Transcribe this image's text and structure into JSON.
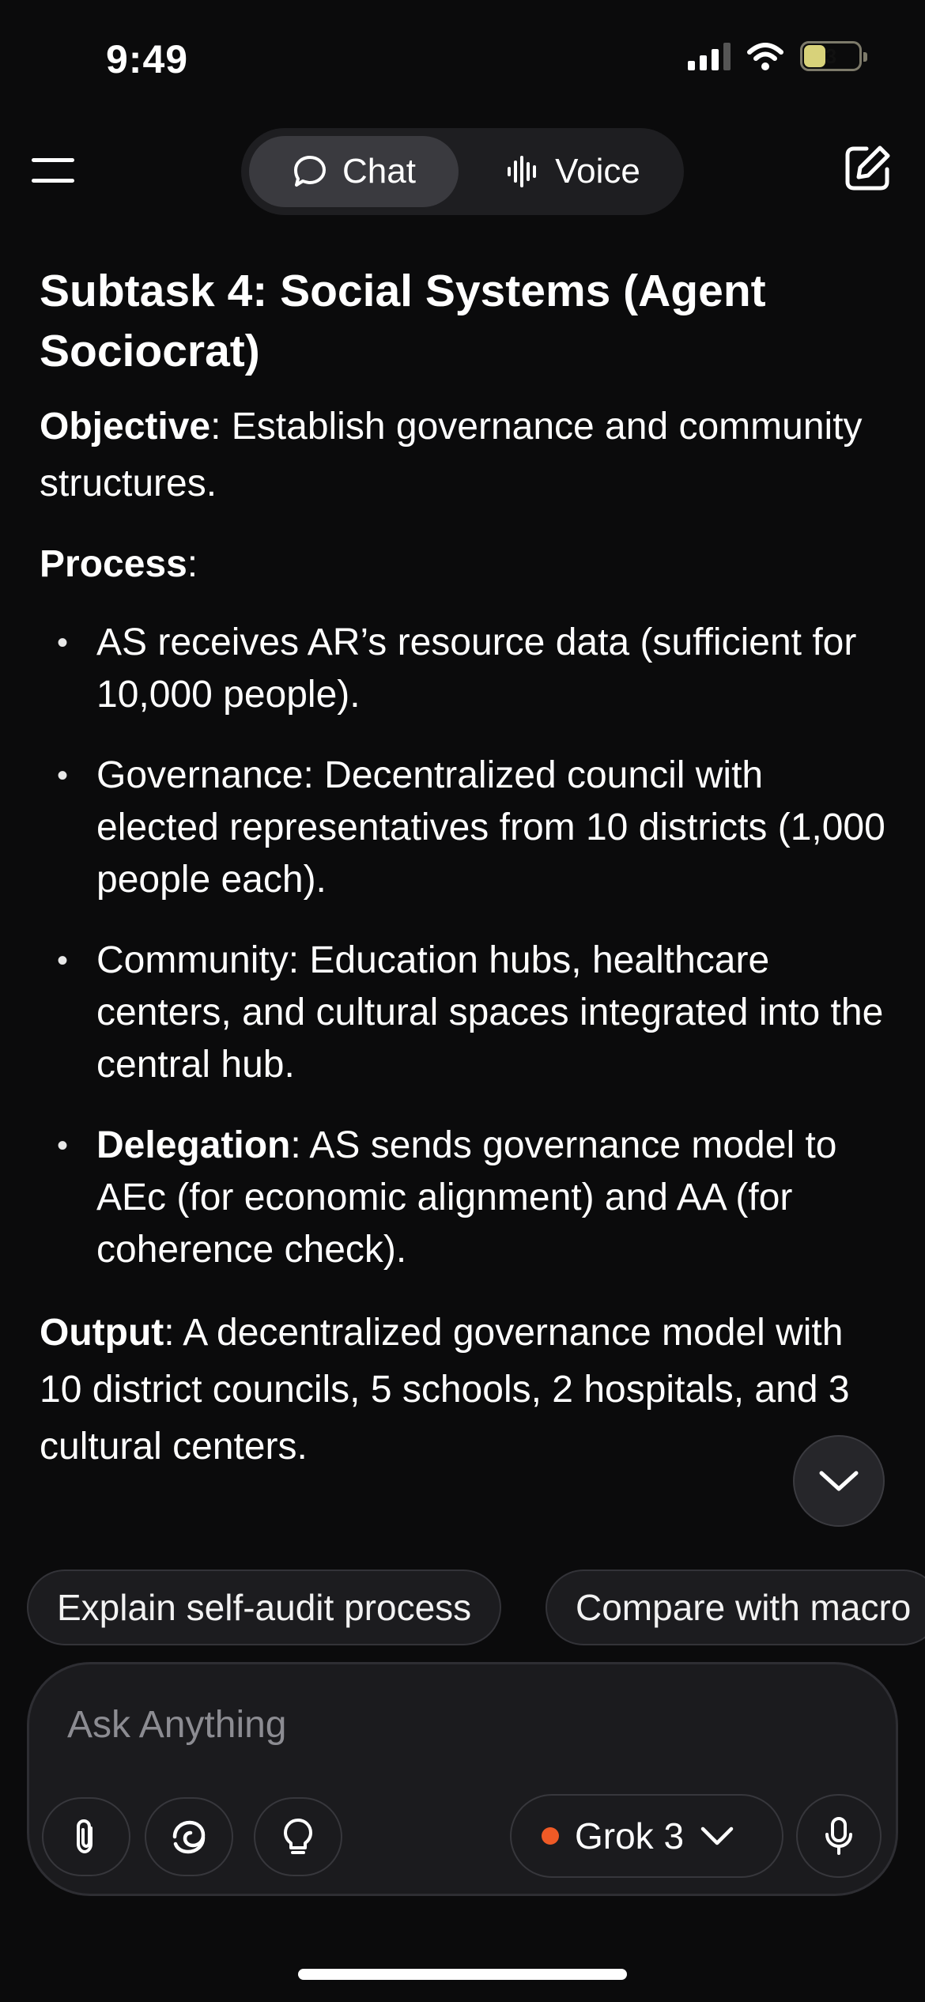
{
  "status": {
    "time": "9:49",
    "battery": "3"
  },
  "header": {
    "mode_chat": "Chat",
    "mode_voice": "Voice",
    "active_mode": "Chat"
  },
  "message": {
    "title": "Subtask 4: Social Systems (Agent Sociocrat)",
    "objective_label": "Objective",
    "objective_text": ": Establish governance and community structures.",
    "process_label": "Process",
    "process_suffix": ":",
    "bullets": [
      {
        "bold": "",
        "text": "AS receives AR’s resource data (sufficient for 10,000 people)."
      },
      {
        "bold": "",
        "text": "Governance: Decentralized council with elected representatives from 10 districts (1,000 people each)."
      },
      {
        "bold": "",
        "text": "Community: Education hubs, healthcare centers, and cultural spaces integrated into the central hub."
      },
      {
        "bold": "Delegation",
        "text": ": AS sends governance model to AEc (for economic alignment) and AA (for coherence check)."
      }
    ],
    "output_label": "Output",
    "output_text": ": A decentralized governance model with 10 district councils, 5 schools, 2 hospitals, and 3 cultural centers."
  },
  "suggestions": [
    "Explain self-audit process",
    "Compare with macro"
  ],
  "composer": {
    "placeholder": "Ask Anything",
    "model": "Grok 3"
  },
  "icons": {
    "menu": "menu-icon",
    "chat": "chat-bubble-icon",
    "voice": "voice-wave-icon",
    "new_chat": "new-chat-icon",
    "scroll": "chevron-down-icon",
    "attach": "paperclip-icon",
    "deepsearch": "swirl-icon",
    "think": "lightbulb-icon",
    "mic": "microphone-icon"
  },
  "colors": {
    "background": "#0b0b0c",
    "model_dot": "#ef5a26"
  }
}
